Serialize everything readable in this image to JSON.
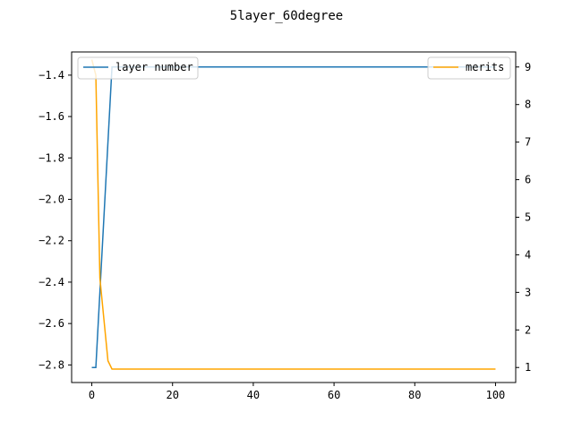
{
  "chart_data": {
    "type": "line",
    "title": "5layer_60degree",
    "xlabel": "",
    "ylabel_left": "",
    "ylabel_right": "",
    "xlim": [
      -5,
      105
    ],
    "ylim_left": [
      -2.885,
      -1.288
    ],
    "ylim_right": [
      0.6,
      9.4
    ],
    "x_ticks": [
      0,
      20,
      40,
      60,
      80,
      100
    ],
    "x_tick_labels": [
      "0",
      "20",
      "40",
      "60",
      "80",
      "100"
    ],
    "y_left_ticks": [
      -2.8,
      -2.6,
      -2.4,
      -2.2,
      -2.0,
      -1.8,
      -1.6,
      -1.4
    ],
    "y_left_tick_labels": [
      "−2.8",
      "−2.6",
      "−2.4",
      "−2.2",
      "−2.0",
      "−1.8",
      "−1.6",
      "−1.4"
    ],
    "y_right_ticks": [
      1,
      2,
      3,
      4,
      5,
      6,
      7,
      8,
      9
    ],
    "y_right_tick_labels": [
      "1",
      "2",
      "3",
      "4",
      "5",
      "6",
      "7",
      "8",
      "9"
    ],
    "grid": false,
    "legends": [
      {
        "entries": [
          "layer number"
        ],
        "placement": "upper-left"
      },
      {
        "entries": [
          "merits"
        ],
        "placement": "upper-right"
      }
    ],
    "series": [
      {
        "name": "layer number",
        "axis": "right",
        "color": "#1f77b4",
        "x": [
          0,
          1,
          2,
          3,
          4,
          5,
          6,
          100
        ],
        "y": [
          1,
          1,
          3,
          5,
          7,
          9,
          9,
          9
        ]
      },
      {
        "name": "merits",
        "axis": "left",
        "color": "#ffa500",
        "x": [
          0,
          1,
          2,
          3,
          4,
          5,
          6,
          100
        ],
        "y": [
          -1.325,
          -1.4,
          -2.38,
          -2.58,
          -2.78,
          -2.82,
          -2.82,
          -2.82
        ]
      }
    ]
  }
}
